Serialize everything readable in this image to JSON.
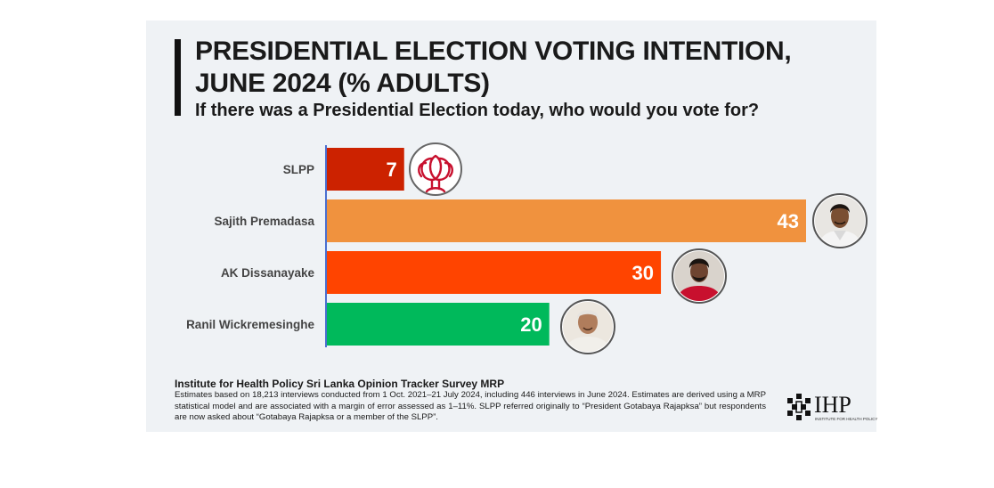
{
  "chart_data": {
    "type": "bar",
    "orientation": "horizontal",
    "title": "PRESIDENTIAL ELECTION VOTING INTENTION, JUNE 2024 (% ADULTS)",
    "subtitle": "If there was a Presidential Election today, who would you vote for?",
    "categories": [
      "SLPP",
      "Sajith Premadasa",
      "AK Dissanayake",
      "Ranil Wickremesinghe"
    ],
    "values": [
      7,
      43,
      30,
      20
    ],
    "colors": [
      "#cc2200",
      "#f0923e",
      "#ff4400",
      "#00b95b"
    ],
    "icons": [
      "slpp-lotus-icon",
      "sajith-premadasa-avatar",
      "ak-dissanayake-avatar",
      "ranil-wickremesinghe-avatar"
    ],
    "xlim": [
      0,
      43
    ],
    "grid": false,
    "legend": "none"
  },
  "source": {
    "title": "Institute for Health Policy Sri Lanka Opinion Tracker Survey MRP",
    "note": "Estimates based on 18,213 interviews conducted from 1 Oct. 2021–21 July 2024, including 446 interviews in June 2024. Estimates are derived using a MRP statistical model and are associated with a margin of error assessed as 1–11%. SLPP referred originally to “President Gotabaya Rajapksa” but respondents are now asked about “Gotabaya Rajapksa or a member of the SLPP”."
  },
  "logo": {
    "text": "IHP",
    "tagline": "INSTITUTE FOR HEALTH POLICY"
  }
}
